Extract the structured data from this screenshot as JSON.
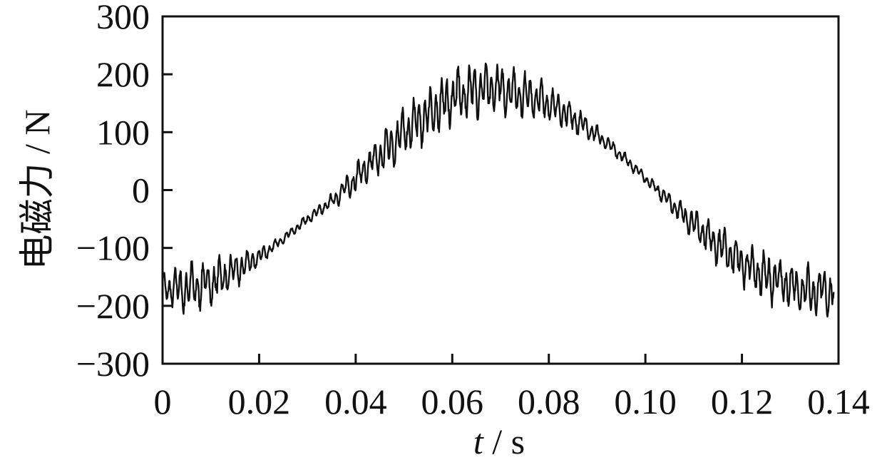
{
  "chart_data": {
    "type": "line",
    "title": "",
    "xlabel_italic": "t",
    "xlabel_rest": " / s",
    "ylabel": "电磁力 / N",
    "xlim": [
      0,
      0.14
    ],
    "ylim": [
      -300,
      300
    ],
    "x_ticks": [
      0,
      0.02,
      0.04,
      0.06,
      0.08,
      0.1,
      0.12,
      0.14
    ],
    "x_tick_labels": [
      "0",
      "0.02",
      "0.04",
      "0.06",
      "0.08",
      "0.10",
      "0.12",
      "0.14"
    ],
    "y_ticks": [
      300,
      200,
      100,
      0,
      -100,
      -200,
      -300
    ],
    "y_tick_labels": [
      "300",
      "200",
      "100",
      "0",
      "−100",
      "−200",
      "−300"
    ],
    "grid": false,
    "legend": "none",
    "line_color": "#111111",
    "series": [
      {
        "x": [
          0,
          0.005,
          0.01,
          0.015,
          0.02,
          0.025,
          0.03,
          0.035,
          0.04,
          0.045,
          0.05,
          0.055,
          0.06,
          0.065,
          0.07,
          0.075,
          0.08,
          0.085,
          0.09,
          0.095,
          0.1,
          0.105,
          0.11,
          0.115,
          0.12,
          0.125,
          0.13,
          0.135,
          0.139
        ],
        "values": [
          -170,
          -170,
          -160,
          -140,
          -115,
          -85,
          -50,
          -20,
          20,
          60,
          100,
          130,
          160,
          175,
          175,
          165,
          150,
          125,
          95,
          60,
          20,
          -20,
          -60,
          -95,
          -125,
          -150,
          -165,
          -175,
          -175
        ],
        "ripple_amplitude": [
          25,
          40,
          40,
          30,
          15,
          8,
          8,
          12,
          25,
          35,
          40,
          45,
          45,
          45,
          40,
          38,
          30,
          25,
          15,
          10,
          8,
          15,
          25,
          35,
          35,
          40,
          40,
          40,
          40
        ]
      }
    ]
  }
}
